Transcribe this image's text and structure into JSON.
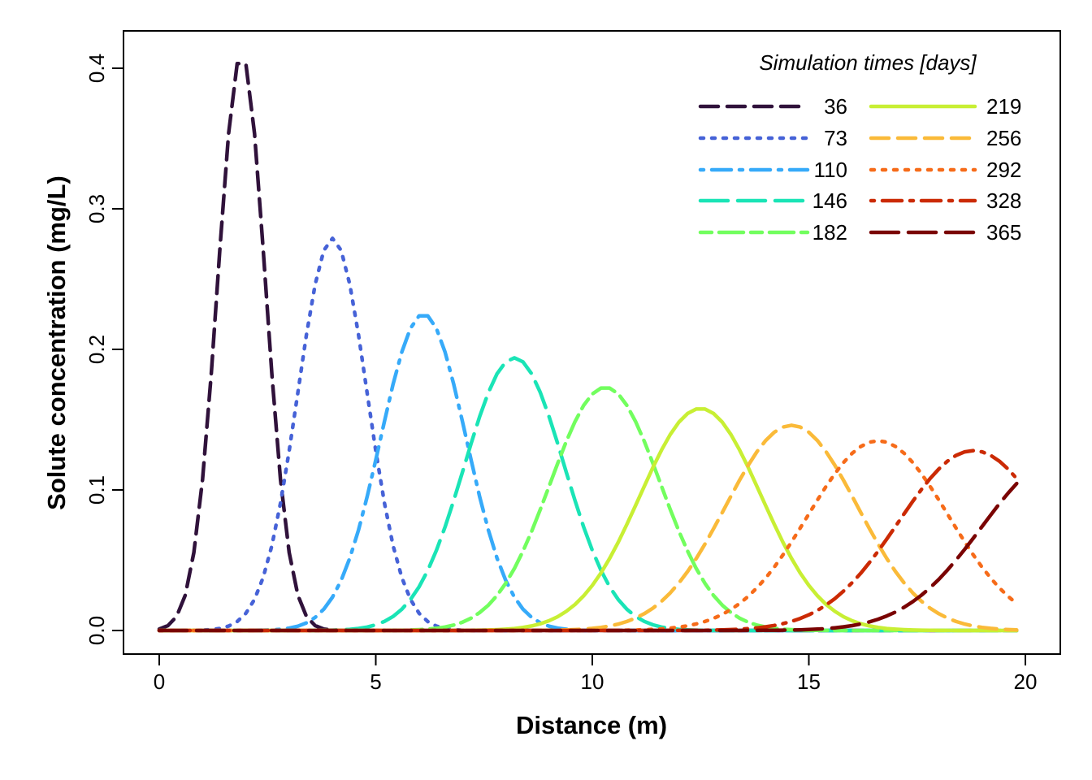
{
  "chart_data": {
    "type": "line",
    "xlabel": "Distance (m)",
    "ylabel": "Solute concentration (mg/L)",
    "xlim": [
      0,
      20
    ],
    "ylim": [
      0,
      0.4
    ],
    "xticks": [
      "0",
      "5",
      "10",
      "15",
      "20"
    ],
    "yticks": [
      "0.0",
      "0.1",
      "0.2",
      "0.3",
      "0.4"
    ],
    "grid": false,
    "legend": {
      "title": "Simulation times [days]",
      "position": "top-right",
      "columns": 2
    },
    "x_sampling": {
      "start": 0,
      "end": 19.8,
      "points": 100
    },
    "series": [
      {
        "name": "36",
        "color": "#30123b",
        "dash": "dashed",
        "peak_x": 1.9,
        "peak_y": 0.41,
        "sigma": 0.55
      },
      {
        "name": "73",
        "color": "#4662d7",
        "dash": "dotted",
        "peak_x": 4.0,
        "peak_y": 0.279,
        "sigma": 0.8
      },
      {
        "name": "110",
        "color": "#36aaf9",
        "dash": "dotdash",
        "peak_x": 6.1,
        "peak_y": 0.225,
        "sigma": 0.99
      },
      {
        "name": "146",
        "color": "#1ae4b6",
        "dash": "longdash",
        "peak_x": 8.2,
        "peak_y": 0.194,
        "sigma": 1.15
      },
      {
        "name": "182",
        "color": "#72fe5e",
        "dash": "twodash",
        "peak_x": 10.3,
        "peak_y": 0.173,
        "sigma": 1.27
      },
      {
        "name": "219",
        "color": "#c8ef34",
        "dash": "solid",
        "peak_x": 12.5,
        "peak_y": 0.158,
        "sigma": 1.4
      },
      {
        "name": "256",
        "color": "#faba39",
        "dash": "dashed",
        "peak_x": 14.6,
        "peak_y": 0.146,
        "sigma": 1.52
      },
      {
        "name": "292",
        "color": "#f66b19",
        "dash": "dotted",
        "peak_x": 16.6,
        "peak_y": 0.135,
        "sigma": 1.62
      },
      {
        "name": "328",
        "color": "#cb2a04",
        "dash": "dotdash",
        "peak_x": 18.8,
        "peak_y": 0.128,
        "sigma": 1.72
      },
      {
        "name": "365",
        "color": "#7a0403",
        "dash": "longdash",
        "peak_x": 20.8,
        "peak_y": 0.122,
        "sigma": 1.8
      }
    ]
  }
}
